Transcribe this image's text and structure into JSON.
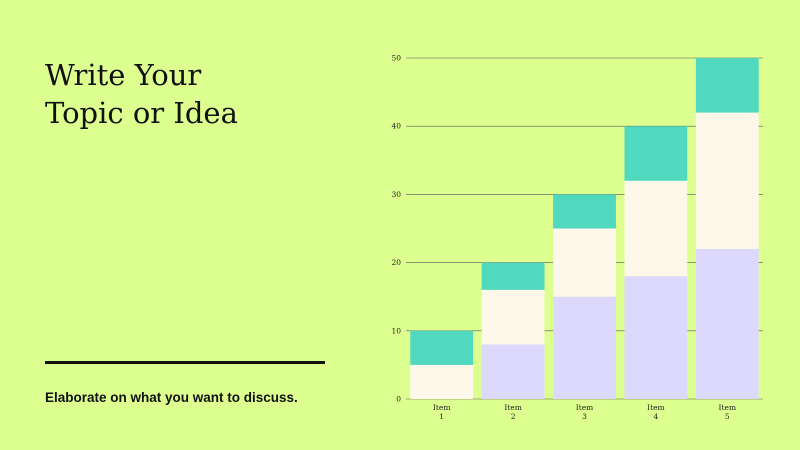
{
  "slide": {
    "title_line1": "Write Your",
    "title_line2": "Topic or Idea",
    "subtitle": "Elaborate on what you want to discuss.",
    "background_color": "#ddff8f"
  },
  "chart_data": {
    "type": "bar",
    "stacked": true,
    "categories": [
      "Item 1",
      "Item 2",
      "Item 3",
      "Item 4",
      "Item 5"
    ],
    "category_lines": [
      [
        "Item",
        "1"
      ],
      [
        "Item",
        "2"
      ],
      [
        "Item",
        "3"
      ],
      [
        "Item",
        "4"
      ],
      [
        "Item",
        "5"
      ]
    ],
    "series": [
      {
        "values": [
          0,
          8,
          15,
          18,
          22
        ],
        "color": "#ddd8fe"
      },
      {
        "values": [
          5,
          8,
          10,
          14,
          20
        ],
        "color": "#fdf8ea"
      },
      {
        "values": [
          5,
          4,
          5,
          8,
          8
        ],
        "color": "#51d9bf"
      }
    ],
    "title": "",
    "xlabel": "",
    "ylabel": "",
    "ylim": [
      0,
      50
    ],
    "yticks": [
      0,
      10,
      20,
      30,
      40,
      50
    ],
    "grid": true,
    "gridline_color": "#555555",
    "axis_color": "#9cab72"
  }
}
